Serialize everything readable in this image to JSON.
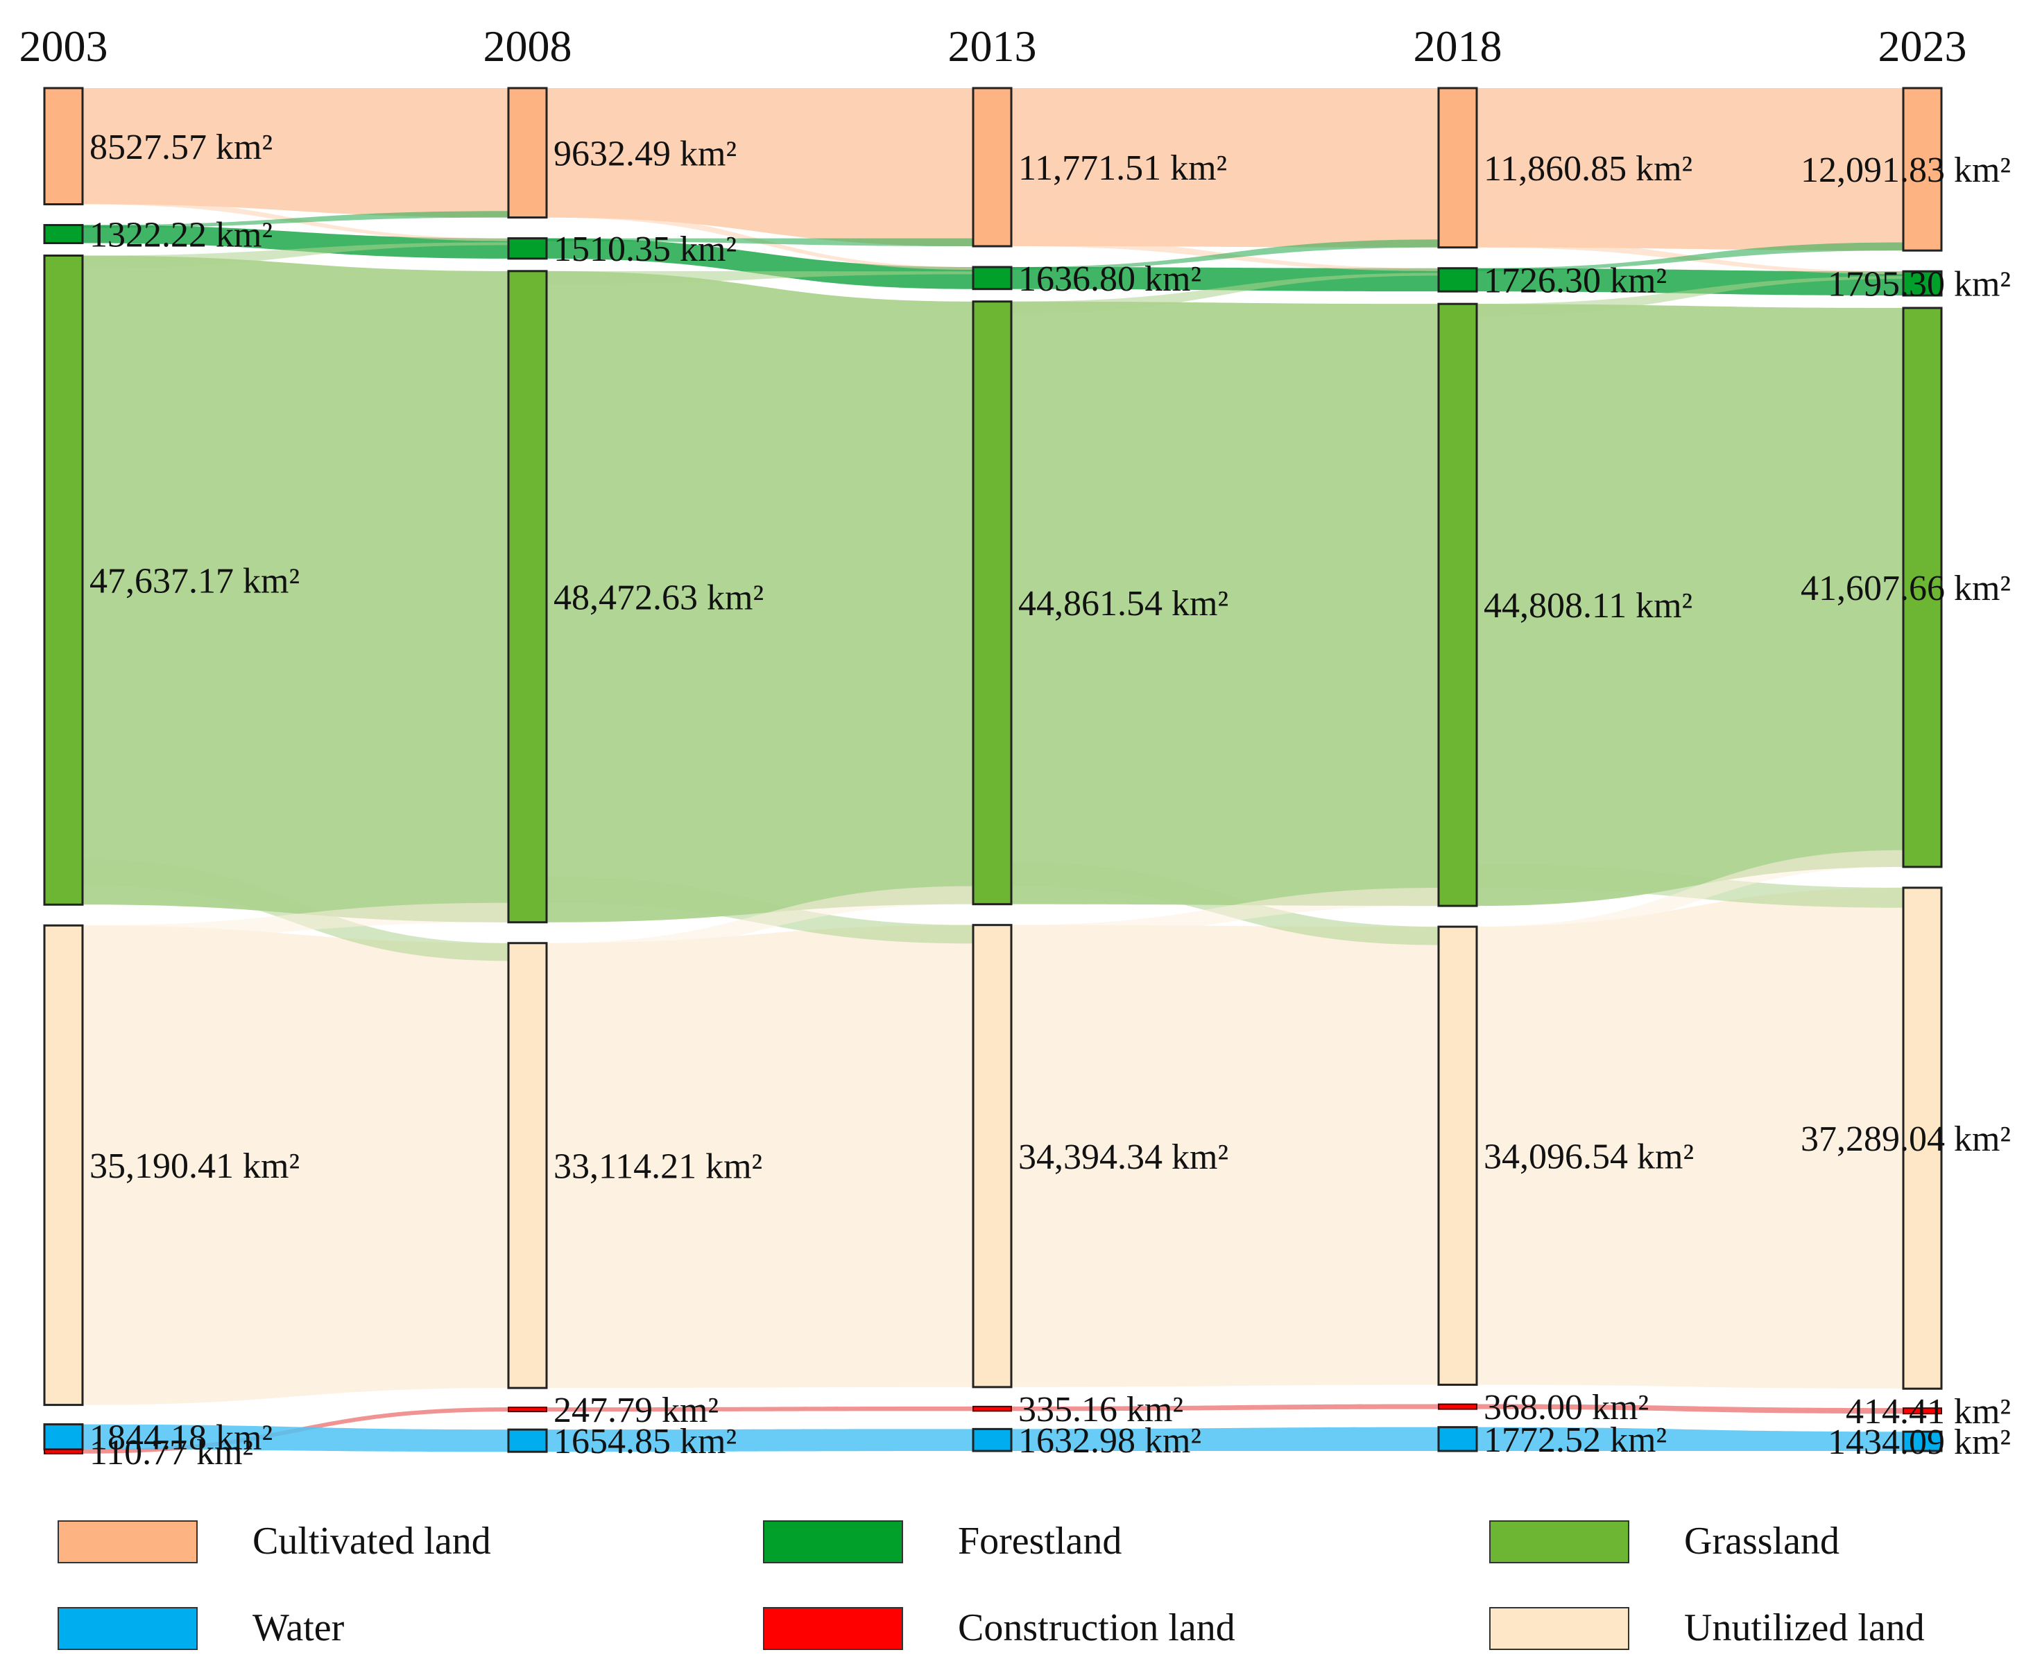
{
  "chart_data": {
    "type": "sankey",
    "unit": "km²",
    "years": [
      "2003",
      "2008",
      "2013",
      "2018",
      "2023"
    ],
    "categories": [
      {
        "key": "cultivated",
        "name": "Cultivated land",
        "color": "#FDB382",
        "flow_color": "#FDD0B0"
      },
      {
        "key": "forest",
        "name": "Forestland",
        "color": "#00A02A",
        "flow_color": "#1FA84A"
      },
      {
        "key": "grass",
        "name": "Grassland",
        "color": "#6DB634",
        "flow_color": "#ADD38E"
      },
      {
        "key": "unutilized",
        "name": "Unutilized land",
        "color": "#FDE7C6",
        "flow_color": "#FDF0E0"
      },
      {
        "key": "construction",
        "name": "Construction land",
        "color": "#FF0000",
        "flow_color": "#F08080"
      },
      {
        "key": "water",
        "name": "Water",
        "color": "#00AEEF",
        "flow_color": "#4FC3F5"
      }
    ],
    "nodes": {
      "2003": [
        {
          "key": "cultivated",
          "value": 8527.57,
          "label": "8527.57 km²"
        },
        {
          "key": "forest",
          "value": 1322.22,
          "label": "1322.22 km²"
        },
        {
          "key": "grass",
          "value": 47637.17,
          "label": "47,637.17 km²"
        },
        {
          "key": "unutilized",
          "value": 35190.41,
          "label": "35,190.41 km²"
        },
        {
          "key": "water",
          "value": 1844.18,
          "label": "1844.18 km²"
        },
        {
          "key": "construction",
          "value": 110.77,
          "label": "110.77 km²"
        }
      ],
      "2008": [
        {
          "key": "cultivated",
          "value": 9632.49,
          "label": "9632.49 km²"
        },
        {
          "key": "forest",
          "value": 1510.35,
          "label": "1510.35 km²"
        },
        {
          "key": "grass",
          "value": 48472.63,
          "label": "48,472.63 km²"
        },
        {
          "key": "unutilized",
          "value": 33114.21,
          "label": "33,114.21 km²"
        },
        {
          "key": "construction",
          "value": 247.79,
          "label": "247.79 km²"
        },
        {
          "key": "water",
          "value": 1654.85,
          "label": "1654.85 km²"
        }
      ],
      "2013": [
        {
          "key": "cultivated",
          "value": 11771.51,
          "label": "11,771.51 km²"
        },
        {
          "key": "forest",
          "value": 1636.8,
          "label": "1636.80 km²"
        },
        {
          "key": "grass",
          "value": 44861.54,
          "label": "44,861.54 km²"
        },
        {
          "key": "unutilized",
          "value": 34394.34,
          "label": "34,394.34 km²"
        },
        {
          "key": "construction",
          "value": 335.16,
          "label": "335.16 km²"
        },
        {
          "key": "water",
          "value": 1632.98,
          "label": "1632.98 km²"
        }
      ],
      "2018": [
        {
          "key": "cultivated",
          "value": 11860.85,
          "label": "11,860.85 km²"
        },
        {
          "key": "forest",
          "value": 1726.3,
          "label": "1726.30 km²"
        },
        {
          "key": "grass",
          "value": 44808.11,
          "label": "44,808.11 km²"
        },
        {
          "key": "unutilized",
          "value": 34096.54,
          "label": "34,096.54 km²"
        },
        {
          "key": "construction",
          "value": 368.0,
          "label": "368.00 km²"
        },
        {
          "key": "water",
          "value": 1772.52,
          "label": "1772.52 km²"
        }
      ],
      "2023": [
        {
          "key": "cultivated",
          "value": 12091.83,
          "label": "12,091.83 km²"
        },
        {
          "key": "forest",
          "value": 1795.3,
          "label": "1795.30 km²"
        },
        {
          "key": "grass",
          "value": 41607.66,
          "label": "41,607.66 km²"
        },
        {
          "key": "unutilized",
          "value": 37289.04,
          "label": "37,289.04 km²"
        },
        {
          "key": "construction",
          "value": 414.41,
          "label": "414.41 km²"
        },
        {
          "key": "water",
          "value": 1434.09,
          "label": "1434.09 km²"
        }
      ]
    },
    "legend": [
      "Cultivated land",
      "Forestland",
      "Grassland",
      "Water",
      "Construction land",
      "Unutilized land"
    ],
    "legend_position": "bottom"
  }
}
